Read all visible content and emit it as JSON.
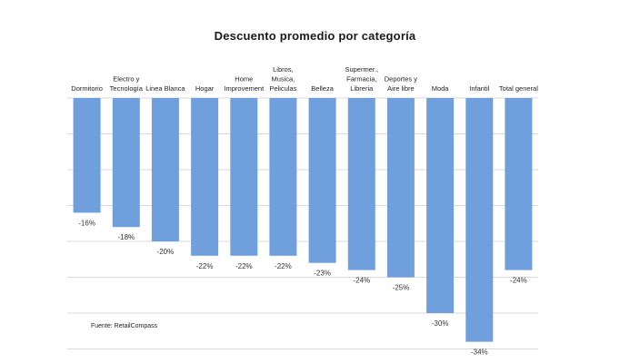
{
  "chart_data": {
    "type": "bar",
    "title": "Descuento promedio por categoría",
    "categories": [
      [
        "Dormitorio"
      ],
      [
        "Electro y",
        "Tecnología"
      ],
      [
        "Linea Blanca"
      ],
      [
        "Hogar"
      ],
      [
        "Home",
        "Improvement"
      ],
      [
        "Libros,",
        "Musica,",
        "Peliculas"
      ],
      [
        "Belleza"
      ],
      [
        "Supermer.,",
        "Farmacia,",
        "Libreria"
      ],
      [
        "Deportes y",
        "Aire libre"
      ],
      [
        "Moda"
      ],
      [
        "Infantil"
      ],
      [
        "Total general"
      ]
    ],
    "values": [
      -16,
      -18,
      -20,
      -22,
      -22,
      -22,
      -23,
      -24,
      -25,
      -30,
      -34,
      -24
    ],
    "value_labels": [
      "-16%",
      "-18%",
      "-20%",
      "-22%",
      "-22%",
      "-22%",
      "-23%",
      "-24%",
      "-25%",
      "-30%",
      "-34%",
      "-24%"
    ],
    "ylim": [
      -35,
      0
    ],
    "grid": true,
    "bar_color": "#6f9fdc",
    "grid_color": "#d9d9d9",
    "source": "Fuente: RetailCompass"
  }
}
